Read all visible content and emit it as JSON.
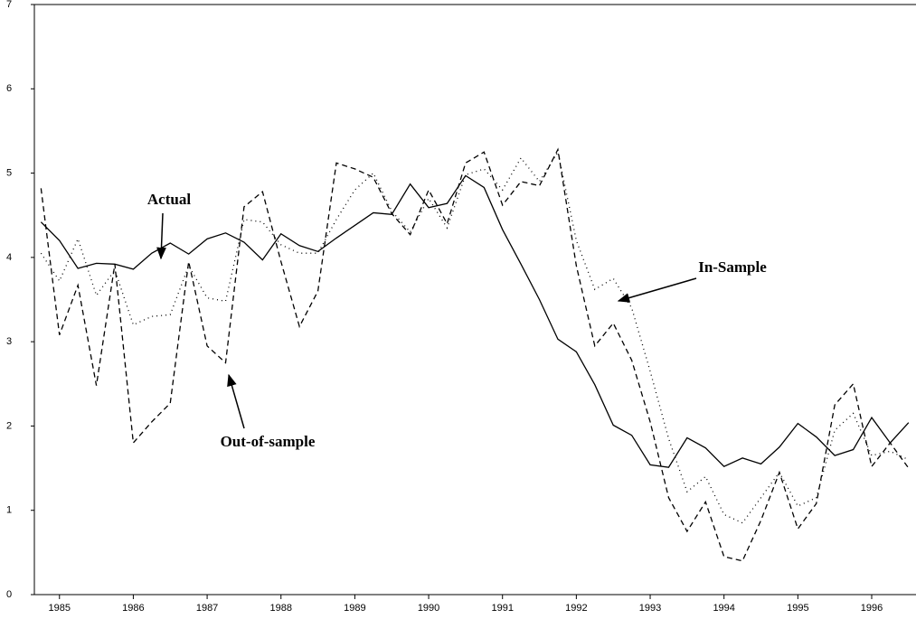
{
  "chart_data": {
    "type": "line",
    "x": [
      1984.75,
      1985,
      1985.25,
      1985.5,
      1985.75,
      1986,
      1986.25,
      1986.5,
      1986.75,
      1987,
      1987.25,
      1987.5,
      1987.75,
      1988,
      1988.25,
      1988.5,
      1988.75,
      1989,
      1989.25,
      1989.5,
      1989.75,
      1990,
      1990.25,
      1990.5,
      1990.75,
      1991,
      1991.25,
      1991.5,
      1991.75,
      1992,
      1992.25,
      1992.5,
      1992.75,
      1993,
      1993.25,
      1993.5,
      1993.75,
      1994,
      1994.25,
      1994.5,
      1994.75,
      1995,
      1995.25,
      1995.5,
      1995.75,
      1996,
      1996.25,
      1996.5
    ],
    "series": [
      {
        "name": "Actual",
        "color": "#000",
        "dash": "none",
        "values": [
          4.42,
          4.2,
          3.87,
          3.93,
          3.92,
          3.86,
          4.05,
          4.17,
          4.04,
          4.22,
          4.29,
          4.18,
          3.97,
          4.28,
          4.14,
          4.07,
          4.23,
          4.38,
          4.53,
          4.51,
          4.87,
          4.59,
          4.64,
          4.97,
          4.83,
          4.33,
          3.92,
          3.5,
          3.03,
          2.88,
          2.49,
          2.01,
          1.89,
          1.54,
          1.51,
          1.86,
          1.74,
          1.52,
          1.62,
          1.55,
          1.75,
          2.03,
          1.87,
          1.65,
          1.72,
          2.1,
          1.8,
          2.04
        ]
      },
      {
        "name": "In-Sample",
        "color": "#000",
        "dash": "1 4",
        "values": [
          4.05,
          3.72,
          4.22,
          3.55,
          3.85,
          3.2,
          3.3,
          3.32,
          3.9,
          3.52,
          3.48,
          4.45,
          4.42,
          4.15,
          4.05,
          4.05,
          4.45,
          4.8,
          5.0,
          4.55,
          4.3,
          4.7,
          4.35,
          4.98,
          5.05,
          4.8,
          5.18,
          4.9,
          5.25,
          4.2,
          3.62,
          3.75,
          3.4,
          2.65,
          1.85,
          1.22,
          1.4,
          0.95,
          0.85,
          1.15,
          1.45,
          1.05,
          1.15,
          1.95,
          2.15,
          1.65,
          1.7,
          1.6
        ]
      },
      {
        "name": "Out-of-sample",
        "color": "#000",
        "dash": "6 4",
        "values": [
          4.82,
          3.08,
          3.67,
          2.48,
          3.92,
          1.8,
          2.05,
          2.27,
          3.95,
          2.95,
          2.75,
          4.6,
          4.78,
          3.95,
          3.18,
          3.6,
          5.12,
          5.05,
          4.95,
          4.52,
          4.27,
          4.8,
          4.4,
          5.12,
          5.25,
          4.62,
          4.9,
          4.85,
          5.28,
          3.9,
          2.95,
          3.22,
          2.78,
          2.05,
          1.15,
          0.75,
          1.1,
          0.45,
          0.4,
          0.88,
          1.45,
          0.78,
          1.08,
          2.25,
          2.5,
          1.52,
          1.8,
          1.5
        ]
      }
    ],
    "xlim": [
      1984.66,
      1996.6
    ],
    "xticks": [
      1985,
      1986,
      1987,
      1988,
      1989,
      1990,
      1991,
      1992,
      1993,
      1994,
      1995,
      1996
    ],
    "ylim": [
      0,
      7
    ],
    "yticks": [
      0,
      1,
      2,
      3,
      4,
      5,
      6,
      7
    ]
  }
}
